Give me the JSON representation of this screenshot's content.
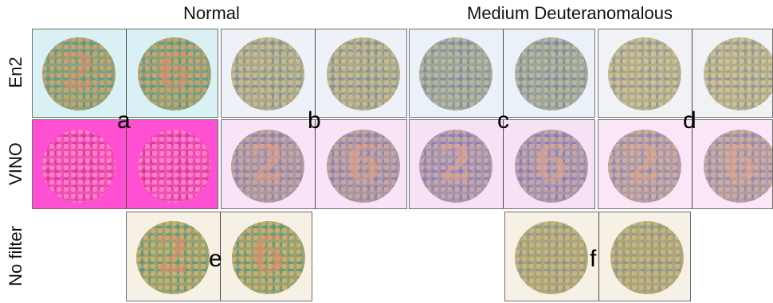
{
  "column_titles": {
    "normal": "Normal",
    "deuteranomalous": "Medium Deuteranomalous"
  },
  "row_labels": {
    "en2": "En2",
    "vino": "VINO",
    "no_filter": "No filter"
  },
  "panel_labels": [
    "a",
    "b",
    "c",
    "d",
    "e",
    "f"
  ],
  "plate_digits": [
    "2",
    "6"
  ],
  "colors": {
    "en2_normal_bg": "#d9f1f4",
    "en2_deut_bg": "#eef1f8",
    "vino_normal_bg": "#ff4fd3",
    "vino_deut_bg": "#f8e4f6",
    "no_filter_bg": "#f6f1e4"
  }
}
